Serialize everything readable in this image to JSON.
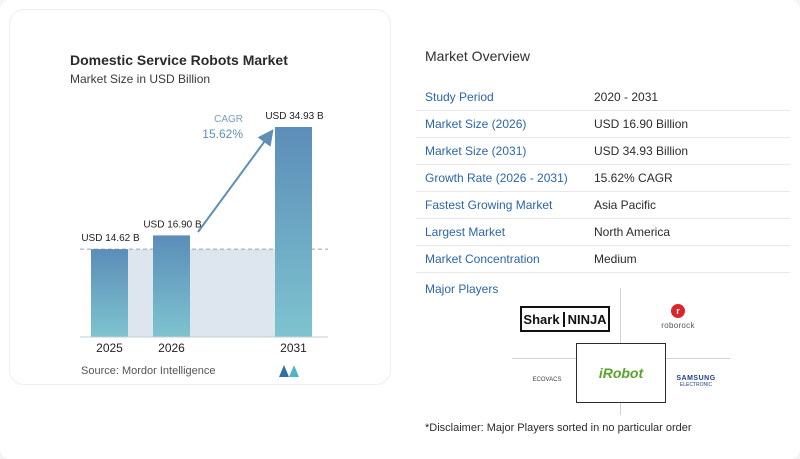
{
  "chart_data": {
    "type": "bar",
    "title": "Domestic Service Robots Market",
    "subtitle": "Market Size in USD Billion",
    "categories": [
      "2025",
      "2026",
      "2031"
    ],
    "values": [
      14.62,
      16.9,
      34.93
    ],
    "value_labels": [
      "USD 14.62 B",
      "USD 16.90 B",
      "USD 34.93 B"
    ],
    "cagr_label": "CAGR",
    "cagr_value": "15.62%",
    "xlabel": "",
    "ylabel": "",
    "ylim": [
      0,
      35
    ],
    "grid": false,
    "colors": {
      "bar_top": "#5b8db8",
      "bar_bottom": "#7ec3cf",
      "area": "#dde6ef",
      "arrow": "#5f8fb5",
      "baseline": "#9aa4ad"
    }
  },
  "source": "Source: Mordor Intelligence",
  "overview": {
    "title": "Market Overview",
    "rows": [
      {
        "label": "Study Period",
        "value": "2020 - 2031"
      },
      {
        "label": "Market Size (2026)",
        "value": "USD 16.90 Billion"
      },
      {
        "label": "Market Size (2031)",
        "value": "USD 34.93 Billion"
      },
      {
        "label": "Growth Rate (2026 - 2031)",
        "value": "15.62% CAGR"
      },
      {
        "label": "Fastest Growing Market",
        "value": "Asia Pacific"
      },
      {
        "label": "Largest Market",
        "value": "North America"
      },
      {
        "label": "Market Concentration",
        "value": "Medium"
      }
    ]
  },
  "players": {
    "title": "Major Players",
    "logos": {
      "shark_a": "Shark",
      "shark_b": "NINJA",
      "roborock": "roborock",
      "roborock_mark": "r",
      "irobot": "iRobot",
      "ecovacs": "ECOVACS",
      "samsung_a": "SAMSUNG",
      "samsung_b": "ELECTRONIC"
    }
  },
  "disclaimer": "*Disclaimer: Major Players sorted in no particular order"
}
